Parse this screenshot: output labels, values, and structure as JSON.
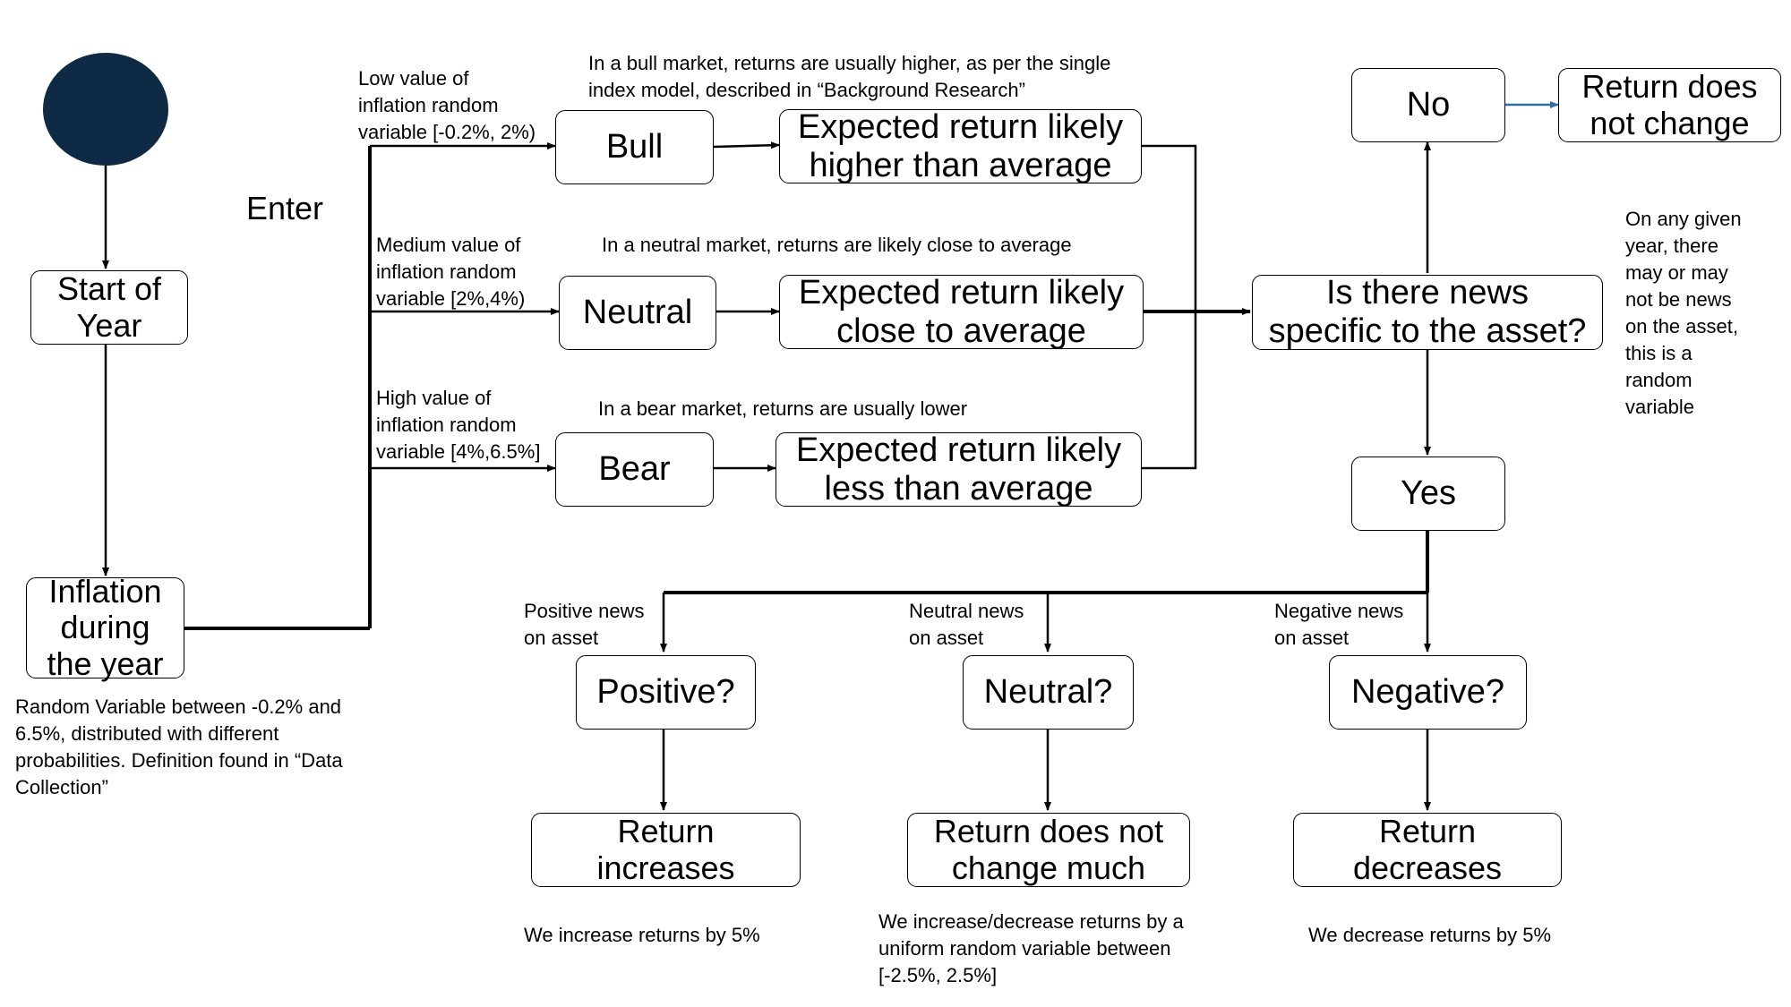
{
  "colors": {
    "start_node": "#0f2a44",
    "highlight_arrow": "#2e6da4"
  },
  "nodes": {
    "start_circle": "start-node",
    "start_of_year": [
      "Start of",
      "Year"
    ],
    "inflation": [
      "Inflation",
      "during",
      "the year"
    ],
    "bull": "Bull",
    "neutral": "Neutral",
    "bear": "Bear",
    "exp_high": [
      "Expected return likely",
      "higher than average"
    ],
    "exp_avg": [
      "Expected return likely",
      "close to average"
    ],
    "exp_low": [
      "Expected return likely",
      "less than average"
    ],
    "news_question": [
      "Is there news",
      "specific to the asset?"
    ],
    "no": "No",
    "yes": "Yes",
    "return_no_change": [
      "Return does",
      "not change"
    ],
    "positive_q": "Positive?",
    "neutral_q": "Neutral?",
    "negative_q": "Negative?",
    "return_increases": [
      "Return",
      "increases"
    ],
    "return_not_much": [
      "Return does not",
      "change much"
    ],
    "return_decreases": [
      "Return",
      "decreases"
    ]
  },
  "labels": {
    "enter": "Enter",
    "low_inflation": [
      "Low value of",
      "inflation random",
      "variable [-0.2%, 2%)"
    ],
    "medium_inflation": [
      "Medium value of",
      "inflation random",
      "variable [2%,4%)"
    ],
    "high_inflation": [
      "High value of",
      "inflation random",
      "variable [4%,6.5%]"
    ],
    "bull_note": [
      "In a bull market, returns are usually higher, as per the single",
      "index model, described  in “Background Research”"
    ],
    "neutral_note": "In a neutral market, returns are likely close to average",
    "bear_note": "In a bear market, returns are usually lower",
    "inflation_note": [
      "Random Variable between -0.2% and",
      "6.5%, distributed with different",
      "probabilities. Definition found in “Data",
      "Collection”"
    ],
    "news_note": [
      "On any given",
      "year, there",
      "may or may",
      "not be news",
      "on the asset,",
      "this is a",
      "random",
      "variable"
    ],
    "positive_news": [
      "Positive news",
      "on asset"
    ],
    "neutral_news": [
      "Neutral news",
      "on asset"
    ],
    "negative_news": [
      "Negative news",
      "on asset"
    ],
    "increase_note": "We increase returns by 5%",
    "uniform_note": [
      "We increase/decrease returns by a",
      "uniform random variable between",
      "[-2.5%, 2.5%]"
    ],
    "decrease_note": "We decrease returns by 5%"
  }
}
